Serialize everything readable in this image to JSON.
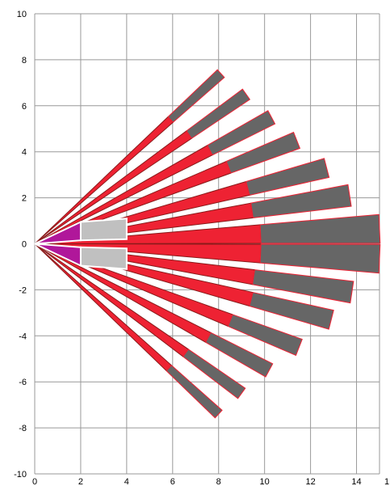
{
  "chart_data": {
    "type": "polygon-diagram",
    "xlim": [
      0,
      15
    ],
    "ylim": [
      -10,
      10
    ],
    "grid": true,
    "x_ticks": [
      0,
      2,
      4,
      6,
      8,
      10,
      12,
      14
    ],
    "x_tick_labels": [
      "0",
      "2",
      "4",
      "6",
      "8",
      "10",
      "12",
      "14"
    ],
    "x_tick_partial_at_edge": "1",
    "y_ticks": [
      10,
      8,
      6,
      4,
      2,
      0,
      -2,
      -4,
      -6,
      -8,
      -10
    ],
    "y_tick_labels": [
      "10",
      "8",
      "6",
      "4",
      "2",
      "0",
      "-2",
      "-4",
      "-6",
      "-8",
      "-10"
    ],
    "colors": {
      "red_fill": "#ee2233",
      "red_stroke": "#8a1a1a",
      "dark_fill": "#666666",
      "light_fill": "#c0c0c0",
      "magenta_fill": "#b0179a",
      "grid": "#999999"
    },
    "origin": [
      0,
      0
    ],
    "rays": [
      {
        "tip": [
          8.1,
          7.4
        ],
        "red_end_t": 0.73,
        "outer_t": 1.0,
        "width": 0.45
      },
      {
        "tip": [
          9.2,
          6.5
        ],
        "red_end_t": 0.73,
        "outer_t": 1.0,
        "width": 0.55
      },
      {
        "tip": [
          10.3,
          5.5
        ],
        "red_end_t": 0.74,
        "outer_t": 1.0,
        "width": 0.65
      },
      {
        "tip": [
          11.4,
          4.5
        ],
        "red_end_t": 0.74,
        "outer_t": 1.0,
        "width": 0.75
      },
      {
        "tip": [
          12.7,
          3.3
        ],
        "red_end_t": 0.73,
        "outer_t": 1.0,
        "width": 0.85
      },
      {
        "tip": [
          13.7,
          2.1
        ],
        "red_end_t": 0.69,
        "outer_t": 1.0,
        "width": 0.95
      },
      {
        "tip": [
          15.0,
          0.65
        ],
        "red_end_t": 0.655,
        "outer_t": 1.0,
        "width": 1.25
      },
      {
        "tip": [
          15.0,
          -0.65
        ],
        "red_end_t": 0.655,
        "outer_t": 1.0,
        "width": 1.25
      },
      {
        "tip": [
          13.8,
          -2.1
        ],
        "red_end_t": 0.69,
        "outer_t": 1.0,
        "width": 0.95
      },
      {
        "tip": [
          12.9,
          -3.3
        ],
        "red_end_t": 0.73,
        "outer_t": 1.0,
        "width": 0.85
      },
      {
        "tip": [
          11.5,
          -4.5
        ],
        "red_end_t": 0.74,
        "outer_t": 1.0,
        "width": 0.75
      },
      {
        "tip": [
          10.2,
          -5.5
        ],
        "red_end_t": 0.74,
        "outer_t": 1.0,
        "width": 0.65
      },
      {
        "tip": [
          9.0,
          -6.5
        ],
        "red_end_t": 0.73,
        "outer_t": 1.0,
        "width": 0.55
      },
      {
        "tip": [
          8.0,
          -7.4
        ],
        "red_end_t": 0.73,
        "outer_t": 1.0,
        "width": 0.45
      }
    ],
    "inner_shapes": [
      {
        "kind": "light-gray",
        "points": [
          [
            2,
            0.15
          ],
          [
            2,
            0.95
          ],
          [
            4,
            1.1
          ],
          [
            4,
            0.2
          ]
        ]
      },
      {
        "kind": "light-gray",
        "points": [
          [
            2,
            -0.15
          ],
          [
            2,
            -0.95
          ],
          [
            4,
            -1.1
          ],
          [
            4,
            -0.2
          ]
        ]
      },
      {
        "kind": "magenta",
        "points": [
          [
            0,
            0
          ],
          [
            2,
            0.95
          ],
          [
            2,
            0.15
          ]
        ]
      },
      {
        "kind": "magenta",
        "points": [
          [
            0,
            0
          ],
          [
            2,
            -0.15
          ],
          [
            2,
            -0.95
          ]
        ]
      }
    ]
  }
}
